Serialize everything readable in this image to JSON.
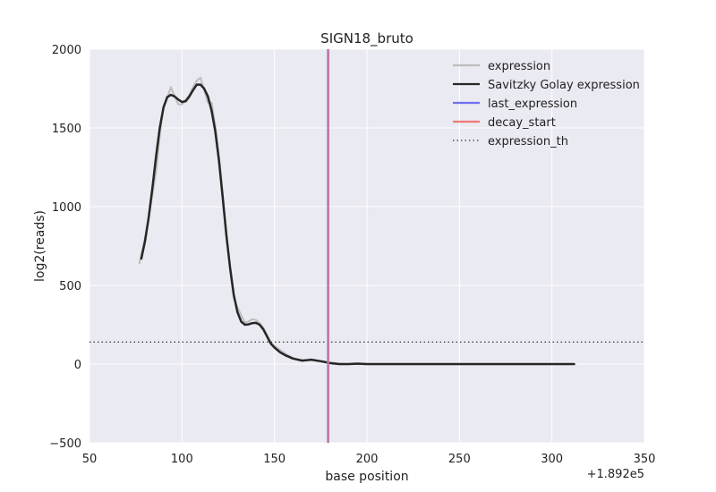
{
  "chart_data": {
    "type": "line",
    "title": "SIGN18_bruto",
    "xlabel": "base position",
    "ylabel": "log2(reads)",
    "x_offset_label": "+1.892e5",
    "xlim": [
      50,
      350
    ],
    "ylim": [
      -500,
      2000
    ],
    "xticks": [
      50,
      100,
      150,
      200,
      250,
      300,
      350
    ],
    "yticks": [
      -500,
      0,
      500,
      1000,
      1500,
      2000
    ],
    "xtick_labels": [
      "50",
      "100",
      "150",
      "200",
      "250",
      "300",
      "350"
    ],
    "ytick_labels": [
      "−500",
      "0",
      "500",
      "1000",
      "1500",
      "2000"
    ],
    "grid": true,
    "legend_position": "top-right",
    "legend": [
      {
        "label": "expression",
        "color": "#bdbdbd",
        "style": "solid"
      },
      {
        "label": "Savitzky Golay expression",
        "color": "#262626",
        "style": "solid"
      },
      {
        "label": "last_expression",
        "color": "#7070f0",
        "style": "solid"
      },
      {
        "label": "decay_start",
        "color": "#f07878",
        "style": "solid"
      },
      {
        "label": "expression_th",
        "color": "#333333",
        "style": "dotted"
      }
    ],
    "series": [
      {
        "name": "expression",
        "color": "#bdbdbd",
        "x": [
          77,
          80,
          83,
          86,
          88,
          90,
          92,
          94,
          96,
          98,
          100,
          102,
          104,
          106,
          108,
          110,
          112,
          114,
          116,
          118,
          120,
          122,
          124,
          126,
          128,
          130,
          132,
          134,
          136,
          138,
          140,
          142,
          144,
          146,
          148,
          150,
          153,
          156,
          160,
          165,
          170,
          175,
          180,
          185,
          190,
          195,
          200,
          220,
          250,
          280,
          312
        ],
        "y": [
          640,
          800,
          1000,
          1220,
          1450,
          1640,
          1690,
          1760,
          1700,
          1650,
          1650,
          1680,
          1710,
          1760,
          1800,
          1820,
          1740,
          1660,
          1660,
          1520,
          1320,
          1080,
          840,
          600,
          420,
          360,
          310,
          265,
          270,
          285,
          280,
          260,
          230,
          185,
          140,
          115,
          90,
          65,
          38,
          22,
          28,
          20,
          10,
          3,
          0,
          0,
          0,
          0,
          0,
          0,
          0
        ]
      },
      {
        "name": "Savitzky Golay expression",
        "color": "#262626",
        "x": [
          78,
          80,
          82,
          84,
          86,
          88,
          90,
          92,
          94,
          96,
          98,
          100,
          102,
          104,
          106,
          108,
          110,
          112,
          114,
          116,
          118,
          120,
          122,
          124,
          126,
          128,
          130,
          132,
          134,
          136,
          138,
          140,
          142,
          144,
          146,
          148,
          150,
          153,
          156,
          160,
          165,
          170,
          175,
          180,
          185,
          190,
          195,
          200,
          220,
          250,
          280,
          312
        ],
        "y": [
          670,
          780,
          930,
          1120,
          1320,
          1500,
          1630,
          1695,
          1710,
          1700,
          1680,
          1665,
          1670,
          1700,
          1740,
          1775,
          1775,
          1750,
          1700,
          1610,
          1480,
          1290,
          1060,
          820,
          610,
          440,
          330,
          270,
          250,
          252,
          260,
          262,
          250,
          220,
          175,
          130,
          105,
          75,
          55,
          35,
          22,
          28,
          18,
          6,
          0,
          0,
          3,
          0,
          0,
          0,
          0,
          0
        ]
      }
    ],
    "vlines": [
      {
        "name": "last_expression",
        "x": 179,
        "color": "#7070f0"
      },
      {
        "name": "decay_start",
        "x": 179,
        "color": "#f07878"
      }
    ],
    "hlines": [
      {
        "name": "expression_th",
        "y": 140,
        "color": "#333333",
        "style": "dotted"
      }
    ]
  }
}
